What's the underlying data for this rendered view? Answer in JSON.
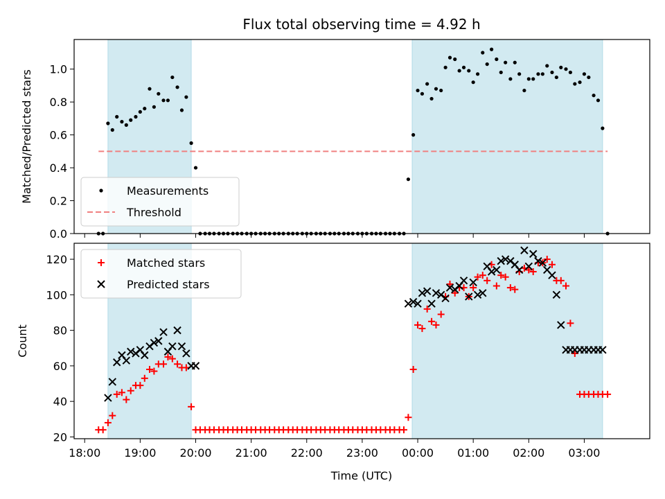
{
  "chart_data": {
    "title": "Flux total observing time = 4.92 h",
    "xlabel": "Time (UTC)",
    "x_tick_labels": [
      "18:00",
      "19:00",
      "20:00",
      "21:00",
      "22:00",
      "23:00",
      "00:00",
      "01:00",
      "02:00",
      "03:00"
    ],
    "x_tick_hours": [
      18,
      19,
      20,
      21,
      22,
      23,
      24,
      25,
      26,
      27
    ],
    "xlim": [
      17.81,
      28.18
    ],
    "shaded_intervals_hours": [
      [
        18.42,
        19.92
      ],
      [
        23.9,
        27.33
      ]
    ],
    "shade_color": "#add8e6",
    "panels": [
      {
        "type": "scatter",
        "ylabel": "Matched/Predicted stars",
        "ylim": [
          0,
          1.18
        ],
        "y_ticks": [
          0.0,
          0.2,
          0.4,
          0.6,
          0.8,
          1.0
        ],
        "y_tick_labels": [
          "0.0",
          "0.2",
          "0.4",
          "0.6",
          "0.8",
          "1.0"
        ],
        "legend_position": "lower-left",
        "series": [
          {
            "name": "Measurements",
            "kind": "dot",
            "color": "#000000",
            "x": [
              18.25,
              18.33,
              18.42,
              18.5,
              18.58,
              18.67,
              18.75,
              18.83,
              18.92,
              19.0,
              19.08,
              19.17,
              19.25,
              19.33,
              19.42,
              19.5,
              19.58,
              19.67,
              19.75,
              19.83,
              19.92,
              20.0,
              20.08,
              20.17,
              20.25,
              20.33,
              20.42,
              20.5,
              20.58,
              20.67,
              20.75,
              20.83,
              20.92,
              21.0,
              21.08,
              21.17,
              21.25,
              21.33,
              21.42,
              21.5,
              21.58,
              21.67,
              21.75,
              21.83,
              21.92,
              22.0,
              22.08,
              22.17,
              22.25,
              22.33,
              22.42,
              22.5,
              22.58,
              22.67,
              22.75,
              22.83,
              22.92,
              23.0,
              23.08,
              23.17,
              23.25,
              23.33,
              23.42,
              23.5,
              23.58,
              23.67,
              23.75,
              23.83,
              23.92,
              24.0,
              24.08,
              24.17,
              24.25,
              24.33,
              24.42,
              24.5,
              24.58,
              24.67,
              24.75,
              24.83,
              24.92,
              25.0,
              25.08,
              25.17,
              25.25,
              25.33,
              25.42,
              25.5,
              25.58,
              25.67,
              25.75,
              25.83,
              25.92,
              26.0,
              26.08,
              26.17,
              26.25,
              26.33,
              26.42,
              26.5,
              26.58,
              26.67,
              26.75,
              26.83,
              26.92,
              27.0,
              27.08,
              27.17,
              27.25,
              27.33,
              27.42
            ],
            "y": [
              0.0,
              0.0,
              0.67,
              0.63,
              0.71,
              0.68,
              0.66,
              0.69,
              0.71,
              0.74,
              0.76,
              0.88,
              0.77,
              0.85,
              0.81,
              0.81,
              0.95,
              0.89,
              0.75,
              0.83,
              0.55,
              0.4,
              0.0,
              0.0,
              0.0,
              0.0,
              0.0,
              0.0,
              0.0,
              0.0,
              0.0,
              0.0,
              0.0,
              0.0,
              0.0,
              0.0,
              0.0,
              0.0,
              0.0,
              0.0,
              0.0,
              0.0,
              0.0,
              0.0,
              0.0,
              0.0,
              0.0,
              0.0,
              0.0,
              0.0,
              0.0,
              0.0,
              0.0,
              0.0,
              0.0,
              0.0,
              0.0,
              0.0,
              0.0,
              0.0,
              0.0,
              0.0,
              0.0,
              0.0,
              0.0,
              0.0,
              0.0,
              0.33,
              0.6,
              0.87,
              0.85,
              0.91,
              0.82,
              0.88,
              0.87,
              1.01,
              1.07,
              1.06,
              0.99,
              1.01,
              0.99,
              0.92,
              0.97,
              1.1,
              1.03,
              1.12,
              1.06,
              0.98,
              1.04,
              0.94,
              1.04,
              0.97,
              0.87,
              0.94,
              0.94,
              0.97,
              0.97,
              1.02,
              0.98,
              0.95,
              1.01,
              1.0,
              0.98,
              0.91,
              0.92,
              0.97,
              0.95,
              0.84,
              0.81,
              0.64,
              0.0
            ]
          },
          {
            "name": "Threshold",
            "kind": "dashed-line",
            "color": "#f08080",
            "x": [
              18.25,
              27.42
            ],
            "y": [
              0.5,
              0.5
            ]
          }
        ]
      },
      {
        "type": "scatter",
        "ylabel": "Count",
        "ylim": [
          19,
          129
        ],
        "y_ticks": [
          20,
          40,
          60,
          80,
          100,
          120
        ],
        "y_tick_labels": [
          "20",
          "40",
          "60",
          "80",
          "100",
          "120"
        ],
        "legend_position": "upper-left",
        "series": [
          {
            "name": "Matched stars",
            "kind": "plus",
            "color": "#ff0000",
            "x": [
              18.25,
              18.33,
              18.42,
              18.5,
              18.58,
              18.67,
              18.75,
              18.83,
              18.92,
              19.0,
              19.08,
              19.17,
              19.25,
              19.33,
              19.42,
              19.5,
              19.58,
              19.67,
              19.75,
              19.83,
              19.92,
              20.0,
              20.08,
              20.17,
              20.25,
              20.33,
              20.42,
              20.5,
              20.58,
              20.67,
              20.75,
              20.83,
              20.92,
              21.0,
              21.08,
              21.17,
              21.25,
              21.33,
              21.42,
              21.5,
              21.58,
              21.67,
              21.75,
              21.83,
              21.92,
              22.0,
              22.08,
              22.17,
              22.25,
              22.33,
              22.42,
              22.5,
              22.58,
              22.67,
              22.75,
              22.83,
              22.92,
              23.0,
              23.08,
              23.17,
              23.25,
              23.33,
              23.42,
              23.5,
              23.58,
              23.67,
              23.75,
              23.83,
              23.92,
              24.0,
              24.08,
              24.17,
              24.25,
              24.33,
              24.42,
              24.5,
              24.58,
              24.67,
              24.75,
              24.83,
              24.92,
              25.0,
              25.08,
              25.17,
              25.25,
              25.33,
              25.42,
              25.5,
              25.58,
              25.67,
              25.75,
              25.83,
              25.92,
              26.0,
              26.08,
              26.17,
              26.25,
              26.33,
              26.42,
              26.5,
              26.58,
              26.67,
              26.75,
              26.83,
              26.92,
              27.0,
              27.08,
              27.17,
              27.25,
              27.33,
              27.42
            ],
            "y": [
              24,
              24,
              28,
              32,
              44,
              45,
              41,
              46,
              49,
              49,
              53,
              58,
              57,
              61,
              61,
              65,
              64,
              61,
              59,
              59,
              37,
              24,
              24,
              24,
              24,
              24,
              24,
              24,
              24,
              24,
              24,
              24,
              24,
              24,
              24,
              24,
              24,
              24,
              24,
              24,
              24,
              24,
              24,
              24,
              24,
              24,
              24,
              24,
              24,
              24,
              24,
              24,
              24,
              24,
              24,
              24,
              24,
              24,
              24,
              24,
              24,
              24,
              24,
              24,
              24,
              24,
              24,
              31,
              58,
              83,
              81,
              92,
              85,
              83,
              89,
              99,
              106,
              101,
              104,
              104,
              99,
              104,
              110,
              111,
              108,
              117,
              105,
              111,
              110,
              104,
              103,
              113,
              115,
              114,
              113,
              118,
              118,
              120,
              117,
              108,
              108,
              105,
              84,
              67,
              44,
              44,
              44,
              44,
              44,
              44,
              44
            ],
            "y_note": "x and y arrays are read off the plot; last points end at 03:25"
          },
          {
            "name": "Predicted stars",
            "kind": "cross",
            "color": "#000000",
            "x": [
              18.42,
              18.5,
              18.58,
              18.67,
              18.75,
              18.83,
              18.92,
              19.0,
              19.08,
              19.17,
              19.25,
              19.33,
              19.42,
              19.5,
              19.58,
              19.67,
              19.75,
              19.83,
              19.92,
              20.0,
              23.83,
              23.92,
              24.0,
              24.08,
              24.17,
              24.25,
              24.33,
              24.42,
              24.5,
              24.58,
              24.67,
              24.75,
              24.83,
              24.92,
              25.0,
              25.08,
              25.17,
              25.25,
              25.33,
              25.42,
              25.5,
              25.58,
              25.67,
              25.75,
              25.83,
              25.92,
              26.0,
              26.08,
              26.17,
              26.25,
              26.33,
              26.42,
              26.5,
              26.58,
              26.67,
              26.75,
              26.83,
              26.92,
              27.0,
              27.08,
              27.17,
              27.25,
              27.33
            ],
            "y": [
              42,
              51,
              62,
              66,
              63,
              68,
              67,
              69,
              66,
              71,
              73,
              74,
              79,
              68,
              71,
              80,
              71,
              67,
              60,
              60,
              95,
              96,
              95,
              101,
              102,
              95,
              101,
              100,
              98,
              104,
              103,
              105,
              108,
              99,
              107,
              100,
              101,
              116,
              113,
              114,
              119,
              120,
              119,
              117,
              114,
              125,
              116,
              123,
              119,
              118,
              114,
              111,
              100,
              83,
              69,
              69,
              69,
              69,
              69,
              69,
              69,
              69,
              69
            ]
          }
        ]
      }
    ]
  }
}
